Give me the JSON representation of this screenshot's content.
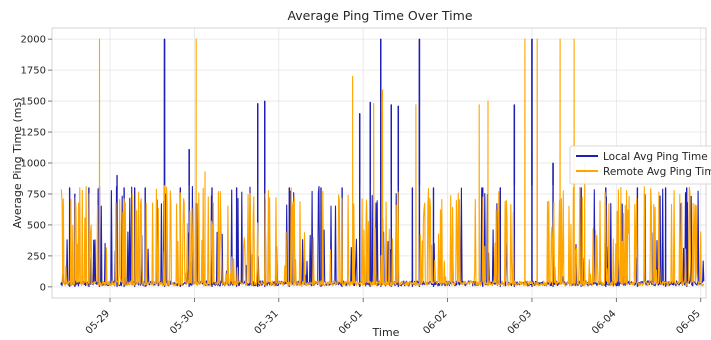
{
  "chart_data": {
    "type": "line",
    "title": "Average Ping Time Over Time",
    "xlabel": "Time",
    "ylabel": "Average Ping Time (ms)",
    "ylim": [
      -90,
      2090
    ],
    "y_ticks": [
      0,
      250,
      500,
      750,
      1000,
      1250,
      1500,
      1750,
      2000
    ],
    "x_ticks": [
      "05-29",
      "05-30",
      "05-31",
      "06-01",
      "06-02",
      "06-03",
      "06-04",
      "06-05"
    ],
    "x_range": [
      "05-28 03:00",
      "05-05 00:00"
    ],
    "grid": true,
    "legend_position": "center-right",
    "colors": {
      "local": "#1f1fb4",
      "remote": "#ffa500"
    },
    "series": [
      {
        "name": "Local Avg Ping Time",
        "color": "#1f1fb4",
        "note": "baseline ~20 ms with frequent spikes to ~800 ms",
        "spikes": [
          {
            "x": "05-28 12:30",
            "y": 800
          },
          {
            "x": "05-28 14:00",
            "y": 750
          },
          {
            "x": "05-28 18:00",
            "y": 800
          },
          {
            "x": "05-28 21:00",
            "y": 810
          },
          {
            "x": "05-29 02:00",
            "y": 900
          },
          {
            "x": "05-29 04:00",
            "y": 800
          },
          {
            "x": "05-29 07:00",
            "y": 800
          },
          {
            "x": "05-29 10:00",
            "y": 800
          },
          {
            "x": "05-29 15:30",
            "y": 2000
          },
          {
            "x": "05-29 20:00",
            "y": 800
          },
          {
            "x": "05-29 22:30",
            "y": 1110
          },
          {
            "x": "05-30 05:00",
            "y": 800
          },
          {
            "x": "05-30 12:00",
            "y": 800
          },
          {
            "x": "05-30 18:00",
            "y": 1480
          },
          {
            "x": "05-30 20:00",
            "y": 1500
          },
          {
            "x": "05-31 03:00",
            "y": 800
          },
          {
            "x": "05-31 12:00",
            "y": 800
          },
          {
            "x": "05-31 18:00",
            "y": 800
          },
          {
            "x": "05-31 23:00",
            "y": 1400
          },
          {
            "x": "06-01 02:00",
            "y": 1490
          },
          {
            "x": "06-01 05:00",
            "y": 2000
          },
          {
            "x": "06-01 08:00",
            "y": 1470
          },
          {
            "x": "06-01 10:00",
            "y": 1460
          },
          {
            "x": "06-01 14:00",
            "y": 800
          },
          {
            "x": "06-01 16:00",
            "y": 2000
          },
          {
            "x": "06-01 20:00",
            "y": 800
          },
          {
            "x": "06-02 10:00",
            "y": 800
          },
          {
            "x": "06-02 15:00",
            "y": 800
          },
          {
            "x": "06-02 19:00",
            "y": 1470
          },
          {
            "x": "06-03 00:00",
            "y": 2000
          },
          {
            "x": "06-03 06:00",
            "y": 1000
          },
          {
            "x": "06-03 14:00",
            "y": 800
          },
          {
            "x": "06-03 21:00",
            "y": 800
          },
          {
            "x": "06-04 06:00",
            "y": 800
          },
          {
            "x": "06-04 14:00",
            "y": 800
          },
          {
            "x": "06-04 20:00",
            "y": 800
          }
        ]
      },
      {
        "name": "Remote Avg Ping Time",
        "color": "#ffa500",
        "note": "dense orange band mostly 0–800 ms with many spikes to 2000 ms",
        "spikes": [
          {
            "x": "05-28 21:00",
            "y": 2000
          },
          {
            "x": "05-29 15:30",
            "y": 1340
          },
          {
            "x": "05-30 00:30",
            "y": 2000
          },
          {
            "x": "05-30 03:00",
            "y": 930
          },
          {
            "x": "05-31 21:00",
            "y": 1700
          },
          {
            "x": "06-01 03:00",
            "y": 1480
          },
          {
            "x": "06-01 05:30",
            "y": 1590
          },
          {
            "x": "06-01 15:00",
            "y": 1470
          },
          {
            "x": "06-02 09:00",
            "y": 1470
          },
          {
            "x": "06-02 11:30",
            "y": 1500
          },
          {
            "x": "06-02 22:00",
            "y": 2000
          },
          {
            "x": "06-03 01:30",
            "y": 2000
          },
          {
            "x": "06-03 08:00",
            "y": 2000
          },
          {
            "x": "06-03 12:00",
            "y": 2000
          },
          {
            "x": "06-03 15:00",
            "y": 1000
          }
        ]
      }
    ]
  }
}
